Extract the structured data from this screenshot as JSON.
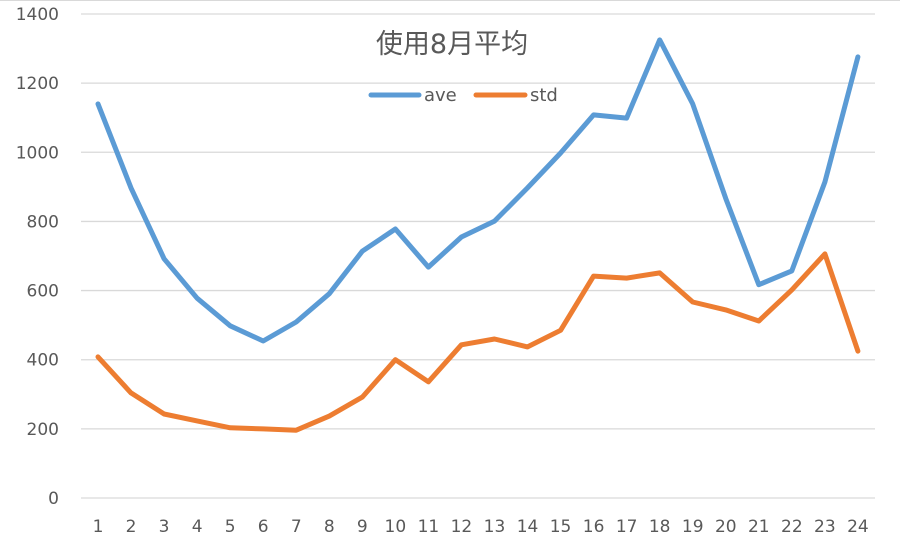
{
  "chart_data": {
    "type": "line",
    "title": "使用8月平均",
    "xlabel": "",
    "ylabel": "",
    "x": [
      1,
      2,
      3,
      4,
      5,
      6,
      7,
      8,
      9,
      10,
      11,
      12,
      13,
      14,
      15,
      16,
      17,
      18,
      19,
      20,
      21,
      22,
      23,
      24
    ],
    "categories": [
      "1",
      "2",
      "3",
      "4",
      "5",
      "6",
      "7",
      "8",
      "9",
      "10",
      "11",
      "12",
      "13",
      "14",
      "15",
      "16",
      "17",
      "18",
      "19",
      "20",
      "21",
      "22",
      "23",
      "24"
    ],
    "series": [
      {
        "name": "ave",
        "color": "#5B9BD5",
        "values": [
          1140,
          897,
          692,
          578,
          498,
          454,
          509,
          591,
          714,
          778,
          668,
          755,
          801,
          897,
          998,
          1108,
          1099,
          1325,
          1140,
          866,
          617,
          657,
          914,
          1276
        ]
      },
      {
        "name": "std",
        "color": "#ED7D31",
        "values": [
          408,
          304,
          243,
          223,
          203,
          200,
          196,
          237,
          292,
          400,
          336,
          443,
          460,
          437,
          485,
          642,
          636,
          651,
          567,
          544,
          512,
          602,
          706,
          425
        ]
      }
    ],
    "ylim": [
      0,
      1400
    ],
    "yticks": [
      0,
      200,
      400,
      600,
      800,
      1000,
      1200,
      1400
    ],
    "grid": true,
    "legend_position": "top"
  },
  "colors": {
    "grid": "#D9D9D9",
    "text": "#595959",
    "background": "#FFFFFF"
  }
}
